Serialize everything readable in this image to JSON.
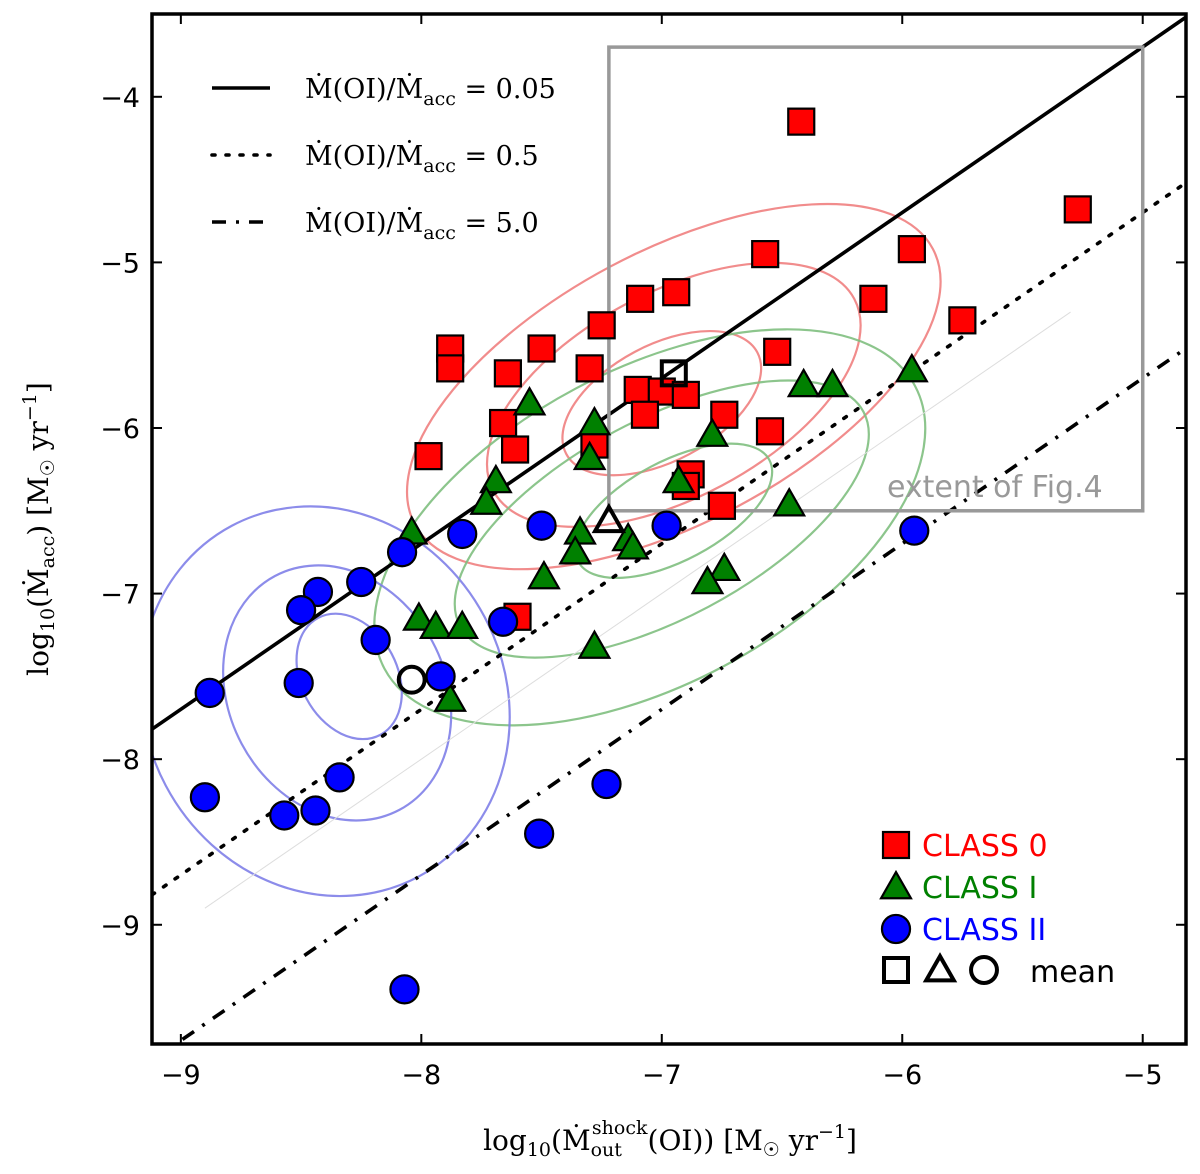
{
  "chart_data": {
    "type": "scatter",
    "title": "",
    "xlabel": "log10(Ṁ_out^shock(OI)) [M☉ yr−1]",
    "ylabel": "log10(Ṁacc) [M☉ yr−1]",
    "xlim": [
      -9.12,
      -4.82
    ],
    "ylim": [
      -9.72,
      -3.5
    ],
    "x_ticks": [
      -9,
      -8,
      -7,
      -6,
      -5
    ],
    "y_ticks": [
      -4,
      -5,
      -6,
      -7,
      -8,
      -9
    ],
    "grid": false,
    "lines": [
      {
        "name": "Ṁ(OI)/Ṁacc = 0.05",
        "style": "solid",
        "ratio": 0.05,
        "offset": 1.30103
      },
      {
        "name": "Ṁ(OI)/Ṁacc = 0.5",
        "style": "dotted",
        "ratio": 0.5,
        "offset": 0.30103
      },
      {
        "name": "Ṁ(OI)/Ṁacc = 5.0",
        "style": "dashdot",
        "ratio": 5.0,
        "offset": -0.69897
      }
    ],
    "legend_lines": [
      {
        "lhs": "Ṁ(OI)/Ṁ",
        "sub": "acc",
        "rhs": " = 0.05"
      },
      {
        "lhs": "Ṁ(OI)/Ṁ",
        "sub": "acc",
        "rhs": " = 0.5"
      },
      {
        "lhs": "Ṁ(OI)/Ṁ",
        "sub": "acc",
        "rhs": " = 5.0"
      }
    ],
    "box": {
      "x": [
        -7.22,
        -5.0
      ],
      "y": [
        -6.5,
        -3.7
      ],
      "label": "extent of Fig.4"
    },
    "series": [
      {
        "name": "CLASS 0",
        "marker": "square",
        "color": "#ff0000",
        "points": [
          [
            -6.42,
            -4.15
          ],
          [
            -5.27,
            -4.68
          ],
          [
            -6.57,
            -4.95
          ],
          [
            -5.96,
            -4.92
          ],
          [
            -6.12,
            -5.22
          ],
          [
            -5.75,
            -5.35
          ],
          [
            -7.09,
            -5.22
          ],
          [
            -6.94,
            -5.18
          ],
          [
            -7.25,
            -5.38
          ],
          [
            -7.88,
            -5.52
          ],
          [
            -7.88,
            -5.64
          ],
          [
            -7.5,
            -5.52
          ],
          [
            -7.64,
            -5.67
          ],
          [
            -7.3,
            -5.64
          ],
          [
            -6.52,
            -5.54
          ],
          [
            -7.1,
            -5.77
          ],
          [
            -7.0,
            -5.78
          ],
          [
            -6.9,
            -5.8
          ],
          [
            -7.07,
            -5.92
          ],
          [
            -7.66,
            -5.97
          ],
          [
            -7.61,
            -6.13
          ],
          [
            -7.28,
            -6.1
          ],
          [
            -6.74,
            -5.92
          ],
          [
            -6.55,
            -6.02
          ],
          [
            -7.97,
            -6.17
          ],
          [
            -6.88,
            -6.28
          ],
          [
            -6.9,
            -6.35
          ],
          [
            -6.75,
            -6.47
          ],
          [
            -7.6,
            -7.14
          ]
        ]
      },
      {
        "name": "CLASS I",
        "marker": "triangle",
        "color": "#008000",
        "points": [
          [
            -5.96,
            -5.65
          ],
          [
            -6.41,
            -5.74
          ],
          [
            -6.29,
            -5.74
          ],
          [
            -7.55,
            -5.85
          ],
          [
            -7.28,
            -5.97
          ],
          [
            -6.79,
            -6.04
          ],
          [
            -7.3,
            -6.18
          ],
          [
            -6.93,
            -6.32
          ],
          [
            -7.69,
            -6.32
          ],
          [
            -7.73,
            -6.45
          ],
          [
            -6.47,
            -6.46
          ],
          [
            -8.04,
            -6.63
          ],
          [
            -7.34,
            -6.63
          ],
          [
            -7.36,
            -6.75
          ],
          [
            -7.14,
            -6.67
          ],
          [
            -7.12,
            -6.72
          ],
          [
            -7.49,
            -6.9
          ],
          [
            -6.74,
            -6.85
          ],
          [
            -6.81,
            -6.93
          ],
          [
            -8.01,
            -7.15
          ],
          [
            -7.94,
            -7.2
          ],
          [
            -7.83,
            -7.2
          ],
          [
            -7.28,
            -7.32
          ],
          [
            -7.88,
            -7.64
          ]
        ]
      },
      {
        "name": "CLASS II",
        "marker": "circle",
        "color": "#0000ff",
        "points": [
          [
            -7.83,
            -6.64
          ],
          [
            -7.5,
            -6.59
          ],
          [
            -6.98,
            -6.59
          ],
          [
            -5.95,
            -6.62
          ],
          [
            -8.08,
            -6.75
          ],
          [
            -8.25,
            -6.93
          ],
          [
            -8.43,
            -6.99
          ],
          [
            -8.5,
            -7.1
          ],
          [
            -7.66,
            -7.17
          ],
          [
            -8.19,
            -7.28
          ],
          [
            -8.88,
            -7.6
          ],
          [
            -8.51,
            -7.54
          ],
          [
            -7.92,
            -7.5
          ],
          [
            -8.34,
            -8.11
          ],
          [
            -8.9,
            -8.23
          ],
          [
            -8.57,
            -8.34
          ],
          [
            -8.44,
            -8.31
          ],
          [
            -7.23,
            -8.15
          ],
          [
            -7.51,
            -8.45
          ],
          [
            -8.07,
            -9.39
          ]
        ]
      }
    ],
    "means": [
      {
        "series": "CLASS 0",
        "marker": "square",
        "x": -6.95,
        "y": -5.67
      },
      {
        "series": "CLASS I",
        "marker": "triangle",
        "x": -7.22,
        "y": -6.56
      },
      {
        "series": "CLASS II",
        "marker": "circle",
        "x": -8.04,
        "y": -7.52
      }
    ],
    "legend": {
      "placement": "bottom-right",
      "entries": [
        "CLASS 0",
        "CLASS I",
        "CLASS II"
      ],
      "mean_label": "mean"
    },
    "contours": [
      {
        "series": "CLASS 0",
        "color": "#f08080",
        "levels": [
          {
            "cx": -7.0,
            "cy": -5.85,
            "rx": 0.45,
            "ry": 0.35
          },
          {
            "cx": -6.95,
            "cy": -5.8,
            "rx": 0.85,
            "ry": 0.62
          },
          {
            "cx": -6.95,
            "cy": -5.75,
            "rx": 1.22,
            "ry": 0.82
          }
        ]
      },
      {
        "series": "CLASS I",
        "color": "#7fbf7f",
        "levels": [
          {
            "cx": -6.95,
            "cy": -6.5,
            "rx": 0.45,
            "ry": 0.3
          },
          {
            "cx": -7.0,
            "cy": -6.55,
            "rx": 0.95,
            "ry": 0.6
          },
          {
            "cx": -7.05,
            "cy": -6.6,
            "rx": 1.25,
            "ry": 0.95
          }
        ]
      },
      {
        "series": "CLASS II",
        "color": "#7f7fe8",
        "levels": [
          {
            "cx": -8.3,
            "cy": -7.5,
            "rx": 0.2,
            "ry": 0.4
          },
          {
            "cx": -8.35,
            "cy": -7.6,
            "rx": 0.45,
            "ry": 0.8
          },
          {
            "cx": -8.4,
            "cy": -7.65,
            "rx": 0.75,
            "ry": 1.2
          }
        ]
      }
    ]
  }
}
